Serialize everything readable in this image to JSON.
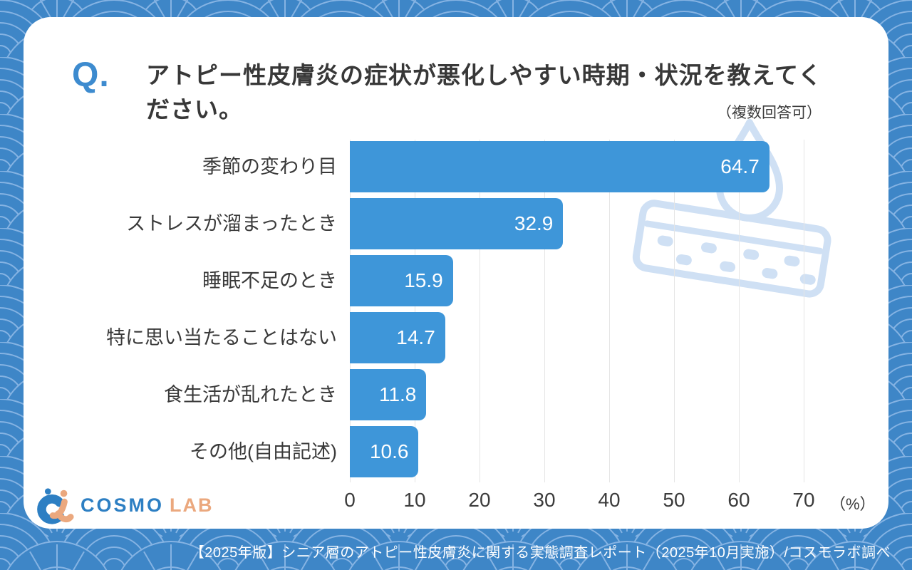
{
  "header": {
    "question_prefix": "Q.",
    "title_lines": [
      "アトピー性皮膚炎の症状が悪化しやすい時期・状況を教えてく",
      "ださい。"
    ],
    "note": "（複数回答可）"
  },
  "logo": {
    "brand": "COSMO",
    "suffix": "LAB"
  },
  "footer": {
    "caption": "【2025年版】シニア層のアトピー性皮膚炎に関する実態調査レポート（2025年10月実施）/コスモラボ調べ"
  },
  "colors": {
    "bar": "#3e96d9",
    "accent_blue": "#3d8bcf",
    "title_text": "#383838",
    "grid_line": "#e5e5e5",
    "background_base": "#3e86c7",
    "background_wave_line": "#85b3e3",
    "watermark_blue": "#cfe0f4",
    "logo_blue": "#2d7fc3",
    "logo_orange": "#eba87e"
  },
  "chart_data": {
    "type": "bar",
    "orientation": "horizontal",
    "categories": [
      "季節の変わり目",
      "ストレスが溜まったとき",
      "睡眠不足のとき",
      "特に思い当たることはない",
      "食生活が乱れたとき",
      "その他(自由記述)"
    ],
    "values": [
      64.7,
      32.9,
      15.9,
      14.7,
      11.8,
      10.6
    ],
    "x_ticks": [
      0,
      10,
      20,
      30,
      40,
      50,
      60,
      70
    ],
    "xlim": [
      0,
      70
    ],
    "unit_label": "（%）",
    "value_label_position": "inside-end",
    "grid": true,
    "legend": false
  }
}
